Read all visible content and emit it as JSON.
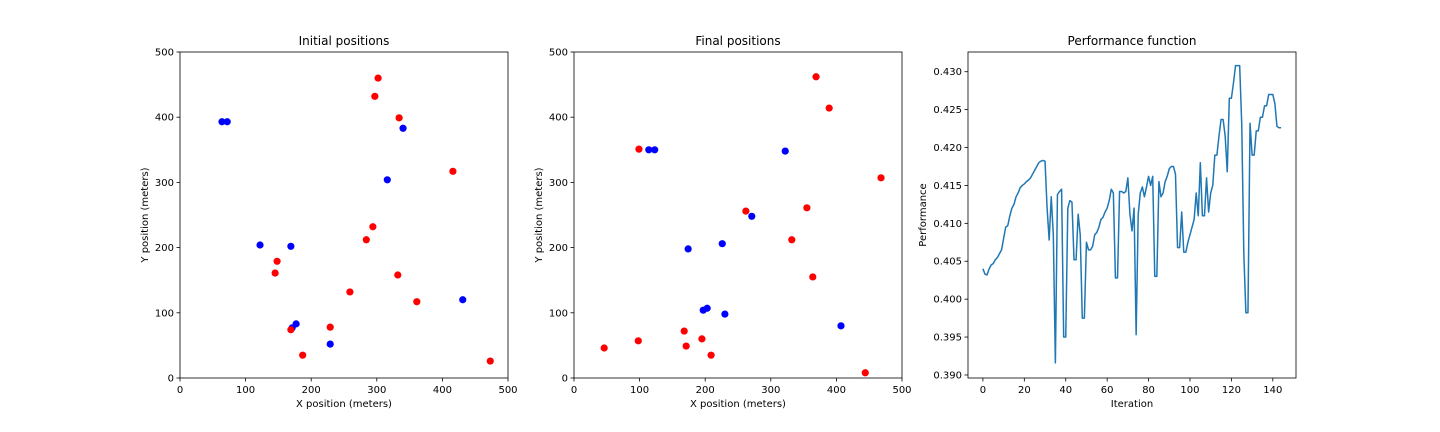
{
  "chart_data": [
    {
      "type": "scatter",
      "title": "Initial positions",
      "xlabel": "X position (meters)",
      "ylabel": "Y position (meters)",
      "xlim": [
        0,
        500
      ],
      "ylim": [
        0,
        500
      ],
      "xticks": [
        0,
        100,
        200,
        300,
        400,
        500
      ],
      "yticks": [
        0,
        100,
        200,
        300,
        400,
        500
      ],
      "series": [
        {
          "color": "#0000ff",
          "x": [
            64,
            72,
            122,
            169,
            316,
            340,
            431,
            177,
            171,
            229
          ],
          "y": [
            393,
            393,
            204,
            202,
            304,
            383,
            120,
            83,
            77,
            52
          ]
        },
        {
          "color": "#ff0000",
          "x": [
            302,
            297,
            334,
            416,
            294,
            284,
            148,
            145,
            332,
            259,
            361,
            229,
            169,
            187,
            473
          ],
          "y": [
            460,
            432,
            399,
            317,
            232,
            212,
            179,
            161,
            158,
            132,
            117,
            78,
            74,
            35,
            26
          ]
        }
      ]
    },
    {
      "type": "scatter",
      "title": "Final positions",
      "xlabel": "X position (meters)",
      "ylabel": "Y position (meters)",
      "xlim": [
        0,
        500
      ],
      "ylim": [
        0,
        500
      ],
      "xticks": [
        0,
        100,
        200,
        300,
        400,
        500
      ],
      "yticks": [
        0,
        100,
        200,
        300,
        400,
        500
      ],
      "series": [
        {
          "color": "#0000ff",
          "x": [
            114,
            123,
            322,
            271,
            174,
            226,
            197,
            203,
            230,
            407
          ],
          "y": [
            350,
            350,
            348,
            248,
            198,
            206,
            104,
            107,
            98,
            80
          ]
        },
        {
          "color": "#ff0000",
          "x": [
            369,
            389,
            99,
            468,
            262,
            355,
            332,
            364,
            168,
            171,
            195,
            209,
            46,
            98,
            444
          ],
          "y": [
            462,
            414,
            351,
            307,
            256,
            261,
            212,
            155,
            72,
            49,
            60,
            35,
            46,
            57,
            8
          ]
        }
      ]
    },
    {
      "type": "line",
      "title": "Performance function",
      "xlabel": "Iteration",
      "ylabel": "Performance",
      "xlim": [
        -7.2,
        151.2
      ],
      "ylim": [
        0.3896,
        0.4326
      ],
      "xticks": [
        0,
        20,
        40,
        60,
        80,
        100,
        120,
        140
      ],
      "yticks": [
        {
          "value": 0.39,
          "label": "0.390"
        },
        {
          "value": 0.395,
          "label": "0.395"
        },
        {
          "value": 0.4,
          "label": "0.400"
        },
        {
          "value": 0.405,
          "label": "0.405"
        },
        {
          "value": 0.41,
          "label": "0.410"
        },
        {
          "value": 0.415,
          "label": "0.415"
        },
        {
          "value": 0.42,
          "label": "0.420"
        },
        {
          "value": 0.425,
          "label": "0.425"
        },
        {
          "value": 0.43,
          "label": "0.430"
        }
      ],
      "series": [
        {
          "color": "#1f77b4",
          "x": [
            0,
            1,
            2,
            3,
            4,
            5,
            6,
            7,
            8,
            9,
            10,
            11,
            12,
            13,
            14,
            15,
            16,
            17,
            18,
            19,
            20,
            21,
            22,
            23,
            24,
            25,
            26,
            27,
            28,
            29,
            30,
            31,
            32,
            33,
            34,
            35,
            36,
            37,
            38,
            39,
            40,
            41,
            42,
            43,
            44,
            45,
            46,
            47,
            48,
            49,
            50,
            51,
            52,
            53,
            54,
            55,
            56,
            57,
            58,
            59,
            60,
            61,
            62,
            63,
            64,
            65,
            66,
            67,
            68,
            69,
            70,
            71,
            72,
            73,
            74,
            75,
            76,
            77,
            78,
            79,
            80,
            81,
            82,
            83,
            84,
            85,
            86,
            87,
            88,
            89,
            90,
            91,
            92,
            93,
            94,
            95,
            96,
            97,
            98,
            99,
            100,
            101,
            102,
            103,
            104,
            105,
            106,
            107,
            108,
            109,
            110,
            111,
            112,
            113,
            114,
            115,
            116,
            117,
            118,
            119,
            120,
            121,
            122,
            123,
            124,
            125,
            126,
            127,
            128,
            129,
            130,
            131,
            132,
            133,
            134,
            135,
            136,
            137,
            138,
            139,
            140,
            141,
            142,
            143,
            144
          ],
          "values": [
            0.404,
            0.4033,
            0.4032,
            0.404,
            0.4045,
            0.4047,
            0.4052,
            0.4055,
            0.406,
            0.4065,
            0.408,
            0.4095,
            0.4097,
            0.411,
            0.412,
            0.4125,
            0.4135,
            0.414,
            0.4147,
            0.415,
            0.4152,
            0.4155,
            0.4157,
            0.416,
            0.4165,
            0.417,
            0.4175,
            0.418,
            0.4182,
            0.4183,
            0.4182,
            0.412,
            0.4078,
            0.4135,
            0.4085,
            0.3916,
            0.4138,
            0.4142,
            0.4145,
            0.395,
            0.395,
            0.412,
            0.413,
            0.4128,
            0.4052,
            0.4052,
            0.4112,
            0.4085,
            0.3975,
            0.3975,
            0.4075,
            0.4065,
            0.4065,
            0.407,
            0.4085,
            0.4088,
            0.4095,
            0.4105,
            0.4108,
            0.4115,
            0.412,
            0.413,
            0.4145,
            0.414,
            0.4028,
            0.4028,
            0.4142,
            0.4142,
            0.414,
            0.4142,
            0.416,
            0.4112,
            0.409,
            0.412,
            0.3953,
            0.4112,
            0.414,
            0.4148,
            0.4135,
            0.4148,
            0.4162,
            0.415,
            0.4162,
            0.403,
            0.403,
            0.4155,
            0.4135,
            0.414,
            0.4155,
            0.4162,
            0.4172,
            0.4175,
            0.4175,
            0.4165,
            0.4068,
            0.4068,
            0.4115,
            0.4062,
            0.4062,
            0.4075,
            0.4085,
            0.4095,
            0.4105,
            0.414,
            0.411,
            0.418,
            0.411,
            0.411,
            0.416,
            0.4115,
            0.414,
            0.415,
            0.419,
            0.419,
            0.4215,
            0.4237,
            0.4237,
            0.4215,
            0.4168,
            0.4265,
            0.4265,
            0.4285,
            0.4308,
            0.4308,
            0.4308,
            0.423,
            0.406,
            0.3982,
            0.3982,
            0.4232,
            0.419,
            0.419,
            0.4222,
            0.4222,
            0.424,
            0.424,
            0.4255,
            0.4255,
            0.427,
            0.427,
            0.427,
            0.4258,
            0.4228,
            0.4226,
            0.4226
          ]
        }
      ]
    }
  ]
}
